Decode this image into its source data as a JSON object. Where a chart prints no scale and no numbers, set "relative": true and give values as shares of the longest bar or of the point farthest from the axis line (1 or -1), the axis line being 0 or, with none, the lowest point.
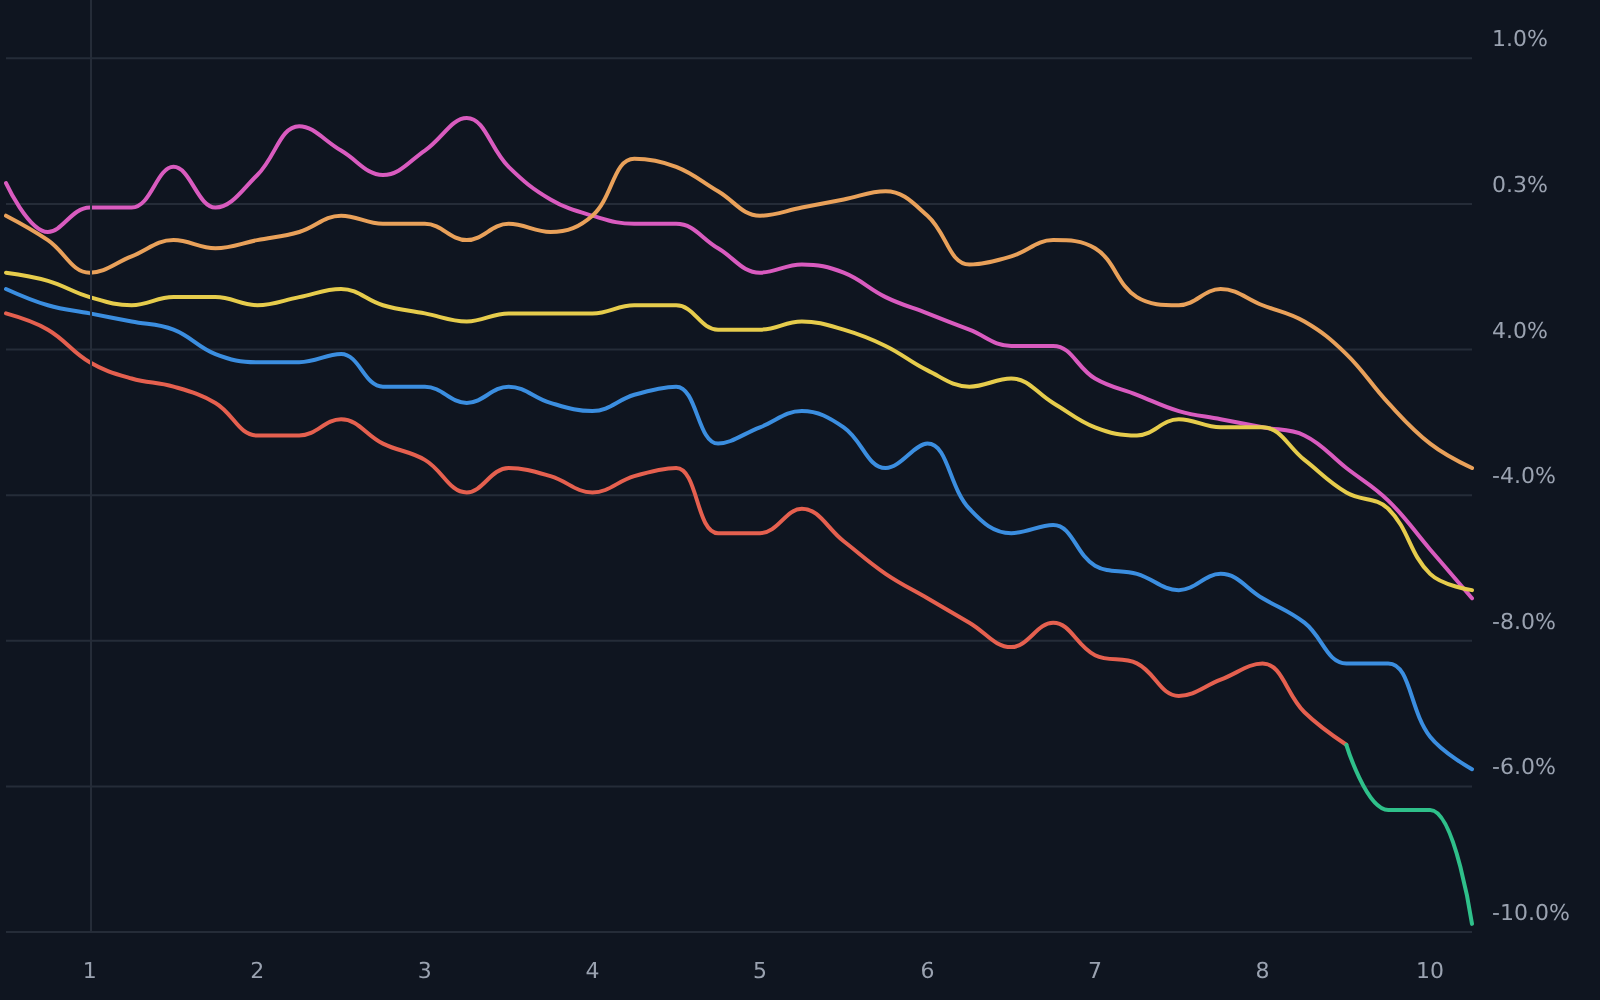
{
  "chart_data": {
    "type": "line",
    "relative": true,
    "categories": [
      null,
      null,
      "1",
      null,
      null,
      null,
      "2",
      null,
      null,
      null,
      "3",
      null,
      null,
      null,
      "4",
      null,
      null,
      null,
      "5",
      null,
      null,
      null,
      "6",
      null,
      null,
      null,
      "7",
      null,
      null,
      null,
      "8",
      null,
      null,
      null,
      "10",
      null
    ],
    "annotations": [
      "-10.0%",
      "-6.0%",
      "-8.0%",
      "-4.0%",
      "4.0%",
      "0.3%",
      "1.0%"
    ],
    "grid": "y",
    "marker": "none",
    "line_style": "solid",
    "ref_lines": [
      {
        "axis": "x",
        "value": "1",
        "label": null,
        "color": "#252c38"
      }
    ],
    "series": [
      {
        "color": "#d95bbf",
        "values": [
          0.92,
          0.86,
          0.89,
          0.89,
          0.94,
          0.89,
          0.93,
          0.99,
          0.96,
          0.93,
          0.96,
          1,
          0.94,
          0.9,
          0.88,
          0.87,
          0.87,
          0.84,
          0.81,
          0.82,
          0.81,
          0.78,
          0.76,
          0.74,
          0.72,
          0.72,
          0.68,
          0.66,
          0.64,
          0.63,
          0.62,
          0.61,
          0.57,
          0.53,
          0.47,
          0.41
        ]
      },
      {
        "color": "#e9a15a",
        "values": [
          0.88,
          0.85,
          0.81,
          0.83,
          0.85,
          0.84,
          0.85,
          0.86,
          0.88,
          0.87,
          0.87,
          0.85,
          0.87,
          0.86,
          0.88,
          0.95,
          0.94,
          0.91,
          0.88,
          0.89,
          0.9,
          0.91,
          0.88,
          0.82,
          0.83,
          0.85,
          0.84,
          0.78,
          0.77,
          0.79,
          0.77,
          0.75,
          0.71,
          0.65,
          0.6,
          0.57
        ]
      },
      {
        "color": "#e6cc4c",
        "values": [
          0.81,
          0.8,
          0.78,
          0.77,
          0.78,
          0.78,
          0.77,
          0.78,
          0.79,
          0.77,
          0.76,
          0.75,
          0.76,
          0.76,
          0.76,
          0.77,
          0.77,
          0.74,
          0.74,
          0.75,
          0.74,
          0.72,
          0.69,
          0.67,
          0.68,
          0.65,
          0.62,
          0.61,
          0.63,
          0.62,
          0.62,
          0.58,
          0.54,
          0.52,
          0.44,
          0.42
        ]
      },
      {
        "color": "#3b8ee0",
        "values": [
          0.79,
          0.77,
          0.76,
          0.75,
          0.74,
          0.71,
          0.7,
          0.7,
          0.71,
          0.67,
          0.67,
          0.65,
          0.67,
          0.65,
          0.64,
          0.66,
          0.67,
          0.6,
          0.62,
          0.64,
          0.62,
          0.57,
          0.6,
          0.52,
          0.49,
          0.5,
          0.45,
          0.44,
          0.42,
          0.44,
          0.41,
          0.38,
          0.33,
          0.33,
          0.24,
          0.2
        ]
      },
      {
        "color": "#e5604f",
        "values": [
          0.76,
          0.74,
          0.7,
          0.68,
          0.67,
          0.65,
          0.61,
          0.61,
          0.63,
          0.6,
          0.58,
          0.54,
          0.57,
          0.56,
          0.54,
          0.56,
          0.57,
          0.49,
          0.49,
          0.52,
          0.48,
          0.44,
          0.41,
          0.38,
          0.35,
          0.38,
          0.34,
          0.33,
          0.29,
          0.31,
          0.33,
          0.27,
          0.23,
          null,
          null,
          null
        ]
      },
      {
        "color": "#2fc08a",
        "values": [
          null,
          null,
          null,
          null,
          null,
          null,
          null,
          null,
          null,
          null,
          null,
          null,
          null,
          null,
          null,
          null,
          null,
          null,
          null,
          null,
          null,
          null,
          null,
          null,
          null,
          null,
          null,
          null,
          null,
          null,
          null,
          null,
          0.23,
          0.15,
          0.15,
          0.01
        ]
      }
    ]
  }
}
